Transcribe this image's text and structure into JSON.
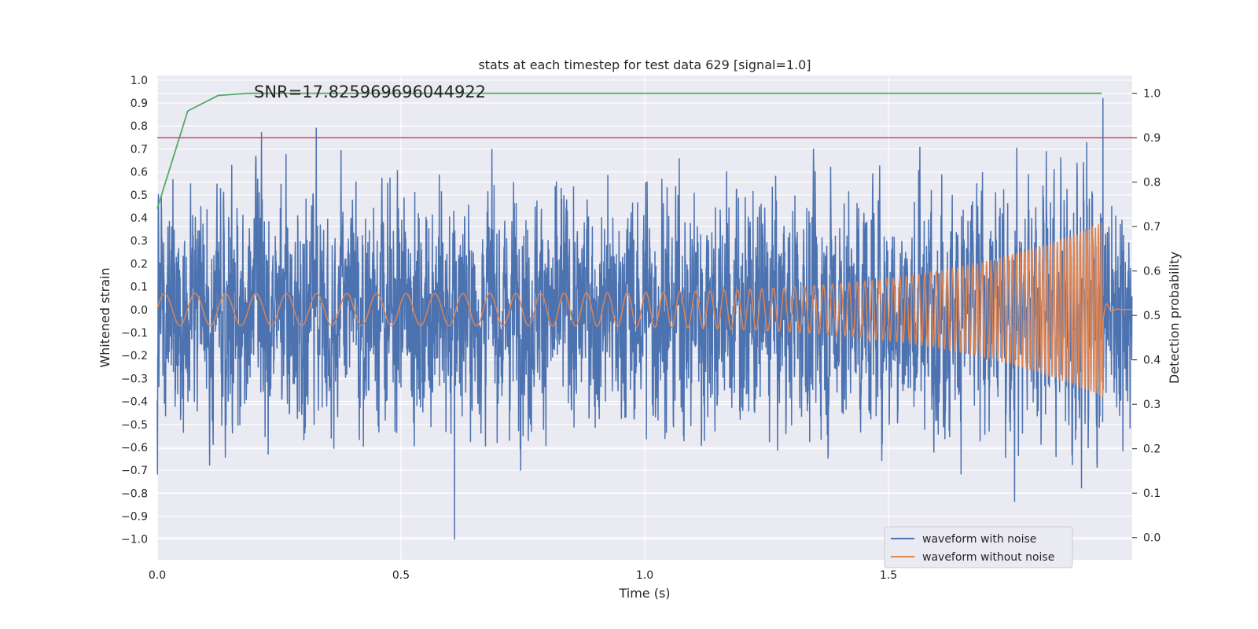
{
  "chart_data": {
    "type": "line",
    "title": "stats at each timestep for test data 629 [signal=1.0]",
    "xlabel": "Time (s)",
    "ylabel": "Whitened strain",
    "y2label": "Detection probability",
    "annotation": "SNR=17.825969696044922",
    "xlim": [
      0.0,
      2.0
    ],
    "ylim": [
      -1.09,
      1.02
    ],
    "y2lim": [
      -0.05,
      1.04
    ],
    "x_ticks": [
      "0.0",
      "0.5",
      "1.0",
      "1.5"
    ],
    "x_tick_values": [
      0.0,
      0.5,
      1.0,
      1.5
    ],
    "y_ticks": [
      "1.0",
      "0.9",
      "0.8",
      "0.7",
      "0.6",
      "0.5",
      "0.4",
      "0.3",
      "0.2",
      "0.1",
      "0.0",
      "−0.1",
      "−0.2",
      "−0.3",
      "−0.4",
      "−0.5",
      "−0.6",
      "−0.7",
      "−0.8",
      "−0.9",
      "−1.0"
    ],
    "y_tick_values": [
      1.0,
      0.9,
      0.8,
      0.7,
      0.6,
      0.5,
      0.4,
      0.3,
      0.2,
      0.1,
      0.0,
      -0.1,
      -0.2,
      -0.3,
      -0.4,
      -0.5,
      -0.6,
      -0.7,
      -0.8,
      -0.9,
      -1.0
    ],
    "y2_ticks": [
      "1.0",
      "0.9",
      "0.8",
      "0.7",
      "0.6",
      "0.5",
      "0.4",
      "0.3",
      "0.2",
      "0.1",
      "0.0"
    ],
    "y2_tick_values": [
      1.0,
      0.9,
      0.8,
      0.7,
      0.6,
      0.5,
      0.4,
      0.3,
      0.2,
      0.1,
      0.0
    ],
    "grid": true,
    "legend_position": "bottom-right",
    "series": [
      {
        "name": "waveform with noise",
        "color": "#4c72b0",
        "axis": "left",
        "kind": "noisy-strain",
        "description_values": {
          "x_start": 0.0,
          "x_end": 2.0,
          "typical_amplitude": 0.4,
          "min_peak": -1.0,
          "max_peak": 0.92,
          "max_peak_x": 1.94,
          "min_peak_x": 0.61
        }
      },
      {
        "name": "waveform without noise",
        "color": "#dd8452",
        "axis": "left",
        "kind": "chirp",
        "description_values": {
          "x_start": 0.0,
          "x_end": 1.94,
          "start_amplitude": 0.07,
          "end_amplitude": 0.38,
          "start_cycles_per_s": 16,
          "end_cycles_per_s": 170,
          "min_value": -0.48
        }
      },
      {
        "color": "#55a868",
        "axis": "right",
        "kind": "line",
        "x": [
          0.0,
          0.0625,
          0.125,
          0.1875,
          0.25,
          0.5,
          1.0,
          1.5,
          1.9375
        ],
        "values": [
          0.74,
          0.96,
          0.995,
          1.0,
          1.0,
          1.0,
          1.0,
          1.0,
          1.0
        ]
      },
      {
        "color": "#c44e52",
        "axis": "right",
        "kind": "hline",
        "values": [
          0.9
        ]
      }
    ]
  }
}
